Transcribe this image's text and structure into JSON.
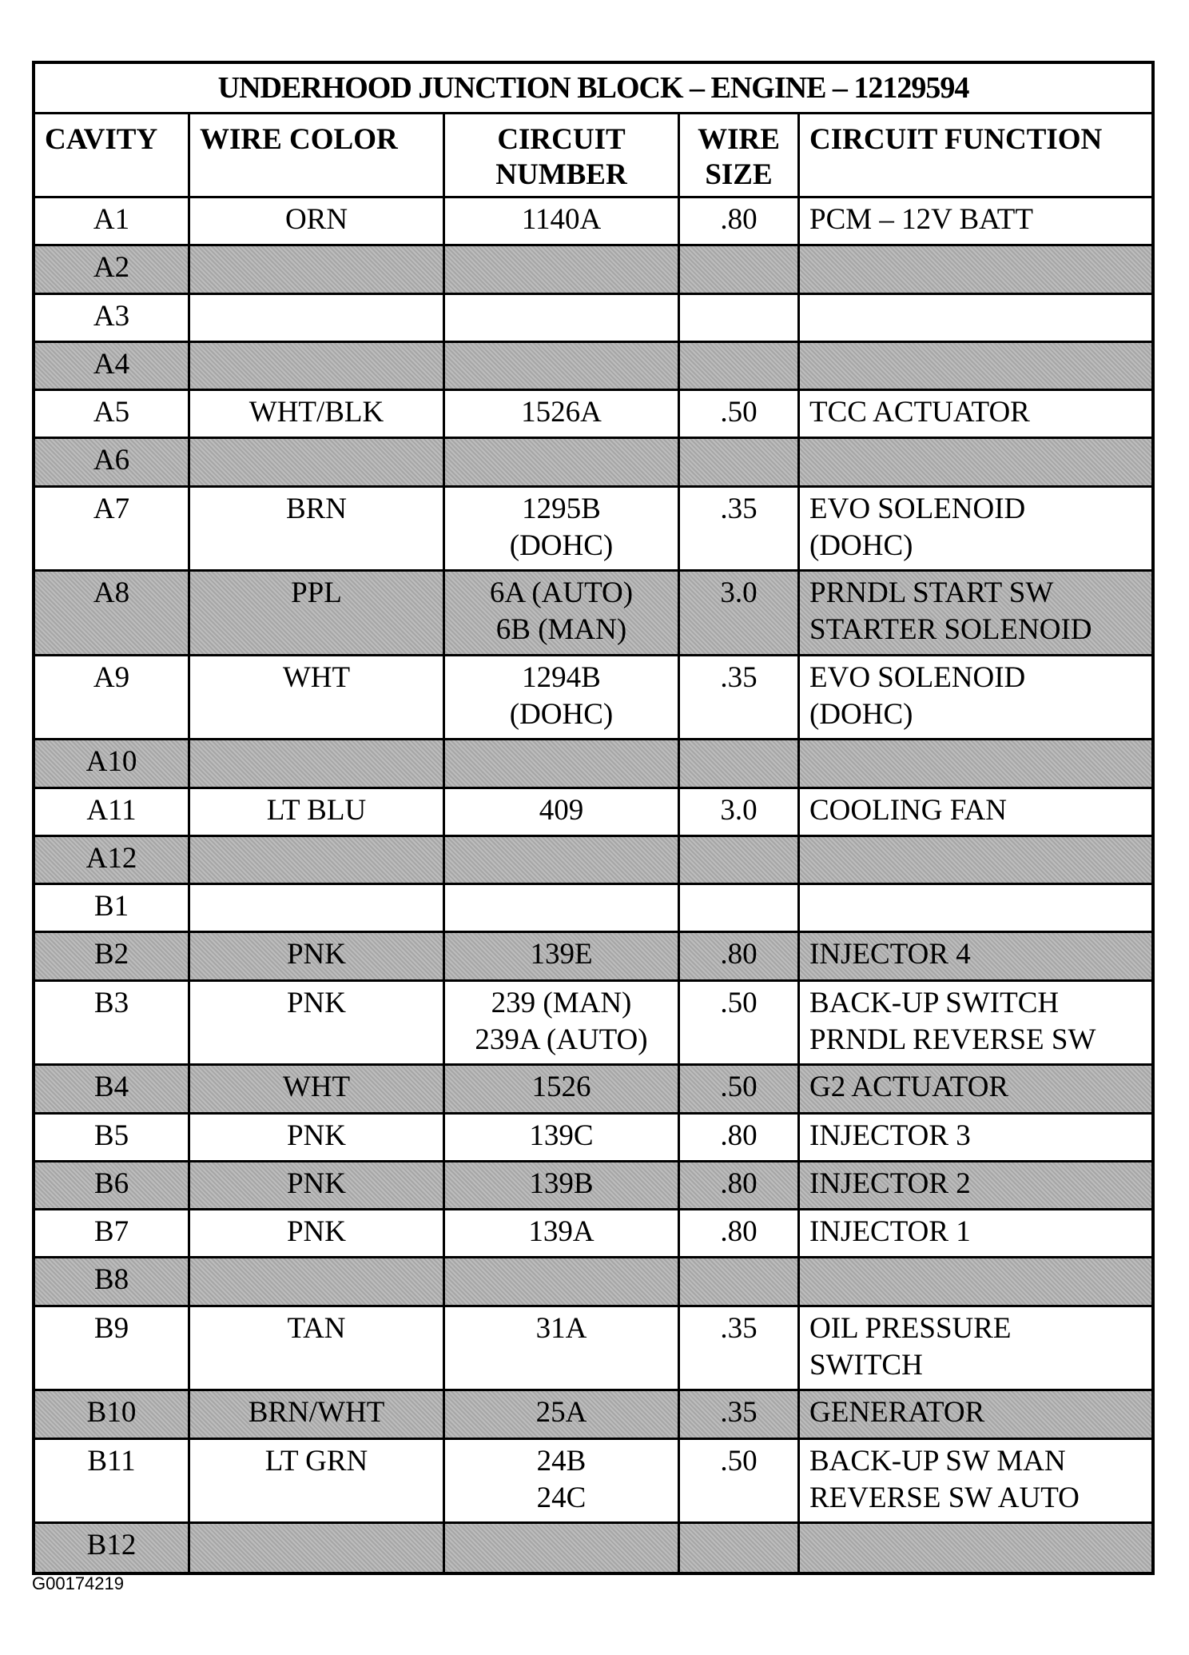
{
  "title": "UNDERHOOD JUNCTION BLOCK – ENGINE – 12129594",
  "headers": [
    "CAVITY",
    "WIRE COLOR",
    "CIRCUIT\nNUMBER",
    "WIRE\nSIZE",
    "CIRCUIT FUNCTION"
  ],
  "rows": [
    {
      "cavity": "A1",
      "color": "ORN",
      "circuit": "1140A",
      "size": ".80",
      "function": "PCM – 12V BATT",
      "shaded": false,
      "tall": false
    },
    {
      "cavity": "A2",
      "color": "",
      "circuit": "",
      "size": "",
      "function": "",
      "shaded": true,
      "tall": false
    },
    {
      "cavity": "A3",
      "color": "",
      "circuit": "",
      "size": "",
      "function": "",
      "shaded": false,
      "tall": false
    },
    {
      "cavity": "A4",
      "color": "",
      "circuit": "",
      "size": "",
      "function": "",
      "shaded": true,
      "tall": false
    },
    {
      "cavity": "A5",
      "color": "WHT/BLK",
      "circuit": "1526A",
      "size": ".50",
      "function": "TCC ACTUATOR",
      "shaded": false,
      "tall": false
    },
    {
      "cavity": "A6",
      "color": "",
      "circuit": "",
      "size": "",
      "function": "",
      "shaded": true,
      "tall": false
    },
    {
      "cavity": "A7",
      "color": "BRN",
      "circuit": "1295B\n(DOHC)",
      "size": ".35",
      "function": "EVO SOLENOID\n(DOHC)",
      "shaded": false,
      "tall": true
    },
    {
      "cavity": "A8",
      "color": "PPL",
      "circuit": "6A (AUTO)\n6B (MAN)",
      "size": "3.0",
      "function": "PRNDL START SW\nSTARTER SOLENOID",
      "shaded": true,
      "tall": true
    },
    {
      "cavity": "A9",
      "color": "WHT",
      "circuit": "1294B\n(DOHC)",
      "size": ".35",
      "function": "EVO SOLENOID\n(DOHC)",
      "shaded": false,
      "tall": true
    },
    {
      "cavity": "A10",
      "color": "",
      "circuit": "",
      "size": "",
      "function": "",
      "shaded": true,
      "tall": false
    },
    {
      "cavity": "A11",
      "color": "LT BLU",
      "circuit": "409",
      "size": "3.0",
      "function": "COOLING FAN",
      "shaded": false,
      "tall": false
    },
    {
      "cavity": "A12",
      "color": "",
      "circuit": "",
      "size": "",
      "function": "",
      "shaded": true,
      "tall": false
    },
    {
      "cavity": "B1",
      "color": "",
      "circuit": "",
      "size": "",
      "function": "",
      "shaded": false,
      "tall": false
    },
    {
      "cavity": "B2",
      "color": "PNK",
      "circuit": "139E",
      "size": ".80",
      "function": "INJECTOR 4",
      "shaded": true,
      "tall": false
    },
    {
      "cavity": "B3",
      "color": "PNK",
      "circuit": "239 (MAN)\n239A (AUTO)",
      "size": ".50",
      "function": "BACK-UP SWITCH\nPRNDL REVERSE SW",
      "shaded": false,
      "tall": true
    },
    {
      "cavity": "B4",
      "color": "WHT",
      "circuit": "1526",
      "size": ".50",
      "function": "G2 ACTUATOR",
      "shaded": true,
      "tall": false
    },
    {
      "cavity": "B5",
      "color": "PNK",
      "circuit": "139C",
      "size": ".80",
      "function": "INJECTOR 3",
      "shaded": false,
      "tall": false
    },
    {
      "cavity": "B6",
      "color": "PNK",
      "circuit": "139B",
      "size": ".80",
      "function": "INJECTOR 2",
      "shaded": true,
      "tall": false
    },
    {
      "cavity": "B7",
      "color": "PNK",
      "circuit": "139A",
      "size": ".80",
      "function": "INJECTOR 1",
      "shaded": false,
      "tall": false
    },
    {
      "cavity": "B8",
      "color": "",
      "circuit": "",
      "size": "",
      "function": "",
      "shaded": true,
      "tall": false
    },
    {
      "cavity": "B9",
      "color": "TAN",
      "circuit": "31A",
      "size": ".35",
      "function": "OIL PRESSURE\nSWITCH",
      "shaded": false,
      "tall": true
    },
    {
      "cavity": "B10",
      "color": "BRN/WHT",
      "circuit": "25A",
      "size": ".35",
      "function": "GENERATOR",
      "shaded": true,
      "tall": false
    },
    {
      "cavity": "B11",
      "color": "LT GRN",
      "circuit": "24B\n24C",
      "size": ".50",
      "function": "BACK-UP SW MAN\nREVERSE SW AUTO",
      "shaded": false,
      "tall": true
    },
    {
      "cavity": "B12",
      "color": "",
      "circuit": "",
      "size": "",
      "function": "",
      "shaded": true,
      "tall": false
    }
  ],
  "figure_id": "G00174219"
}
